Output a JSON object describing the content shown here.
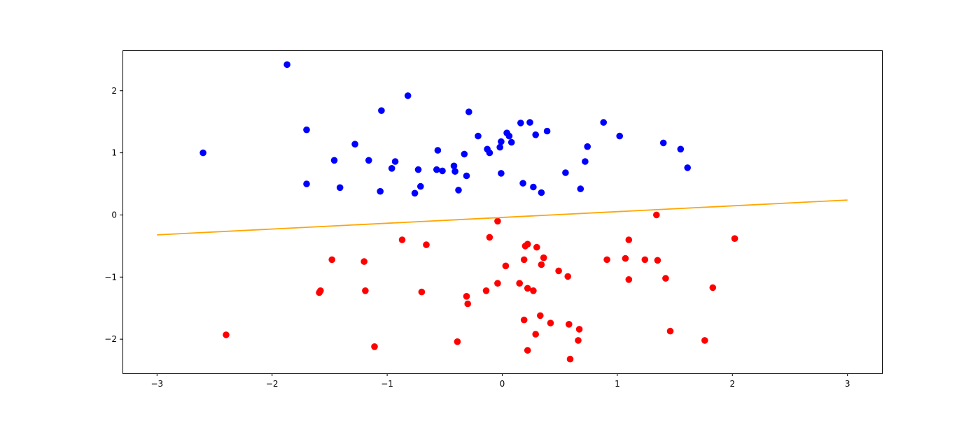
{
  "chart_data": {
    "type": "scatter",
    "title": "",
    "xlabel": "",
    "ylabel": "",
    "xlim": [
      -3.3,
      3.3
    ],
    "ylim": [
      -2.55,
      2.65
    ],
    "xticks": [
      -3,
      -2,
      -1,
      0,
      1,
      2,
      3
    ],
    "yticks": [
      -2,
      -1,
      0,
      1,
      2
    ],
    "xtick_labels": [
      "−3",
      "−2",
      "−1",
      "0",
      "1",
      "2",
      "3"
    ],
    "ytick_labels": [
      "−2",
      "−1",
      "0",
      "1",
      "2"
    ],
    "grid": false,
    "series": [
      {
        "type": "scatter",
        "color": "#0000ff",
        "points": [
          [
            -2.6,
            1.0
          ],
          [
            -1.87,
            2.42
          ],
          [
            -1.7,
            1.37
          ],
          [
            -1.7,
            0.5
          ],
          [
            -1.46,
            0.88
          ],
          [
            -1.41,
            0.44
          ],
          [
            -1.28,
            1.14
          ],
          [
            -1.16,
            0.88
          ],
          [
            -1.06,
            0.38
          ],
          [
            -1.05,
            1.68
          ],
          [
            -0.96,
            0.75
          ],
          [
            -0.93,
            0.86
          ],
          [
            -0.82,
            1.92
          ],
          [
            -0.76,
            0.35
          ],
          [
            -0.73,
            0.73
          ],
          [
            -0.71,
            0.46
          ],
          [
            -0.57,
            0.73
          ],
          [
            -0.56,
            1.04
          ],
          [
            -0.52,
            0.71
          ],
          [
            -0.42,
            0.79
          ],
          [
            -0.41,
            0.7
          ],
          [
            -0.38,
            0.4
          ],
          [
            -0.33,
            0.98
          ],
          [
            -0.31,
            0.63
          ],
          [
            -0.29,
            1.66
          ],
          [
            -0.21,
            1.27
          ],
          [
            -0.13,
            1.06
          ],
          [
            -0.11,
            1.0
          ],
          [
            -0.02,
            1.09
          ],
          [
            -0.01,
            1.18
          ],
          [
            -0.01,
            0.67
          ],
          [
            0.04,
            1.32
          ],
          [
            0.06,
            1.27
          ],
          [
            0.08,
            1.17
          ],
          [
            0.16,
            1.48
          ],
          [
            0.18,
            0.51
          ],
          [
            0.24,
            1.49
          ],
          [
            0.27,
            0.45
          ],
          [
            0.29,
            1.29
          ],
          [
            0.34,
            0.36
          ],
          [
            0.39,
            1.35
          ],
          [
            0.55,
            0.68
          ],
          [
            0.68,
            0.42
          ],
          [
            0.72,
            0.86
          ],
          [
            0.74,
            1.1
          ],
          [
            0.88,
            1.49
          ],
          [
            1.02,
            1.27
          ],
          [
            1.4,
            1.16
          ],
          [
            1.55,
            1.06
          ],
          [
            1.61,
            0.76
          ]
        ]
      },
      {
        "type": "scatter",
        "color": "#ff0000",
        "points": [
          [
            -2.4,
            -1.93
          ],
          [
            -1.59,
            -1.25
          ],
          [
            -1.58,
            -1.22
          ],
          [
            -1.48,
            -0.72
          ],
          [
            -1.2,
            -0.75
          ],
          [
            -1.19,
            -1.22
          ],
          [
            -1.11,
            -2.12
          ],
          [
            -0.87,
            -0.4
          ],
          [
            -0.7,
            -1.24
          ],
          [
            -0.66,
            -0.48
          ],
          [
            -0.39,
            -2.04
          ],
          [
            -0.31,
            -1.31
          ],
          [
            -0.3,
            -1.43
          ],
          [
            -0.14,
            -1.22
          ],
          [
            -0.11,
            -0.36
          ],
          [
            -0.04,
            -0.1
          ],
          [
            -0.04,
            -1.1
          ],
          [
            0.03,
            -0.82
          ],
          [
            0.15,
            -1.1
          ],
          [
            0.19,
            -0.72
          ],
          [
            0.19,
            -1.69
          ],
          [
            0.2,
            -0.5
          ],
          [
            0.22,
            -0.47
          ],
          [
            0.22,
            -1.18
          ],
          [
            0.22,
            -2.18
          ],
          [
            0.27,
            -1.22
          ],
          [
            0.29,
            -1.92
          ],
          [
            0.3,
            -0.52
          ],
          [
            0.33,
            -1.62
          ],
          [
            0.34,
            -0.8
          ],
          [
            0.36,
            -0.69
          ],
          [
            0.42,
            -1.74
          ],
          [
            0.49,
            -0.9
          ],
          [
            0.57,
            -0.99
          ],
          [
            0.58,
            -1.76
          ],
          [
            0.59,
            -2.32
          ],
          [
            0.66,
            -2.02
          ],
          [
            0.67,
            -1.84
          ],
          [
            0.91,
            -0.72
          ],
          [
            1.07,
            -0.7
          ],
          [
            1.1,
            -0.4
          ],
          [
            1.1,
            -1.04
          ],
          [
            1.24,
            -0.72
          ],
          [
            1.34,
            0.0
          ],
          [
            1.35,
            -0.73
          ],
          [
            1.42,
            -1.02
          ],
          [
            1.46,
            -1.87
          ],
          [
            1.76,
            -2.02
          ],
          [
            1.83,
            -1.17
          ],
          [
            2.02,
            -0.38
          ]
        ]
      },
      {
        "type": "line",
        "color": "#ffa500",
        "x": [
          -3,
          3
        ],
        "y": [
          -0.32,
          0.24
        ]
      }
    ]
  }
}
